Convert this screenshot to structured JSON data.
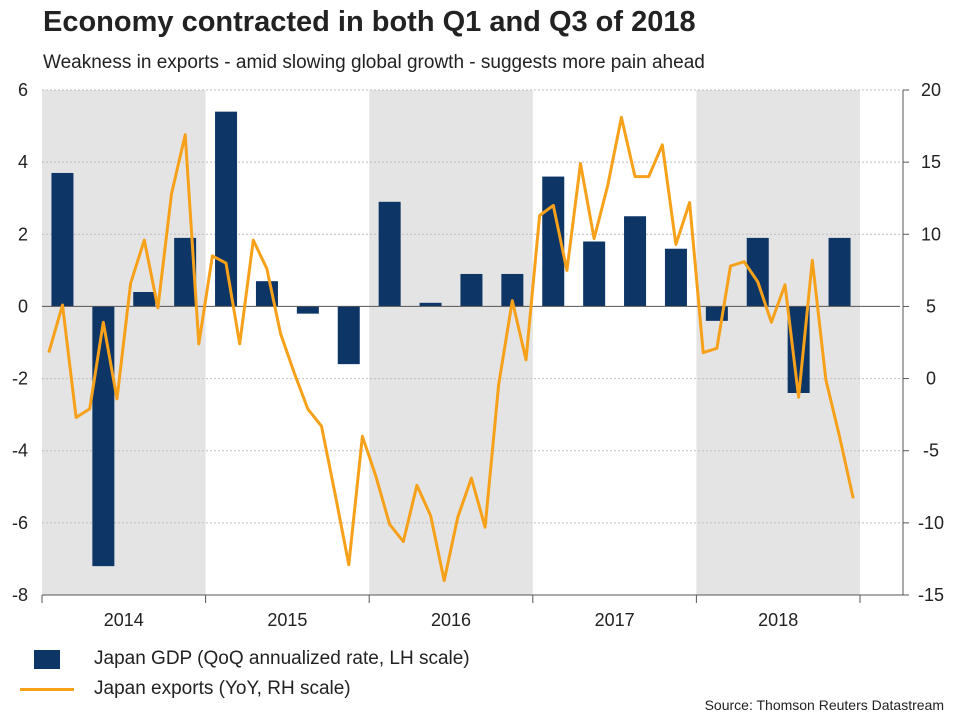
{
  "chart_data": {
    "type": "bar+line",
    "title": "Economy contracted in both Q1 and Q3 of 2018",
    "subtitle": "Weakness in exports - amid slowing global growth - suggests more pain ahead",
    "source": "Source: Thomson Reuters Datastream",
    "years": [
      "2014",
      "2015",
      "2016",
      "2017",
      "2018"
    ],
    "shaded_years": [
      "2014",
      "2016",
      "2018"
    ],
    "left_axis": {
      "ylim": [
        -8,
        6
      ],
      "ticks": [
        -8,
        -6,
        -4,
        -2,
        0,
        2,
        4,
        6
      ]
    },
    "right_axis": {
      "ylim": [
        -15,
        20
      ],
      "ticks": [
        -15,
        -10,
        -5,
        0,
        5,
        10,
        15,
        20
      ]
    },
    "bar_series": {
      "name": "Japan GDP (QoQ annualized rate, LH scale)",
      "color": "#0d3566",
      "quarters": [
        "2014 Q1",
        "2014 Q2",
        "2014 Q3",
        "2014 Q4",
        "2015 Q1",
        "2015 Q2",
        "2015 Q3",
        "2015 Q4",
        "2016 Q1",
        "2016 Q2",
        "2016 Q3",
        "2016 Q4",
        "2017 Q1",
        "2017 Q2",
        "2017 Q3",
        "2017 Q4",
        "2018 Q1",
        "2018 Q2",
        "2018 Q3",
        "2018 Q4"
      ],
      "values": [
        3.7,
        -7.2,
        0.4,
        1.9,
        5.4,
        0.7,
        -0.2,
        -1.6,
        2.9,
        0.1,
        0.9,
        0.9,
        3.6,
        1.8,
        2.5,
        1.6,
        -0.4,
        1.9,
        -2.4,
        1.9
      ]
    },
    "line_series": {
      "name": "Japan exports (YoY, RH scale)",
      "color": "#f7a11a",
      "start": "2014-01",
      "frequency": "monthly",
      "values": [
        1.8,
        5.1,
        -2.7,
        -2.1,
        3.9,
        -1.4,
        6.6,
        9.6,
        4.9,
        12.8,
        16.9,
        2.4,
        8.5,
        8.0,
        2.4,
        9.6,
        7.6,
        3.1,
        0.4,
        -2.1,
        -3.3,
        -8.0,
        -12.9,
        -4.0,
        -6.8,
        -10.1,
        -11.3,
        -7.4,
        -9.5,
        -14.0,
        -9.6,
        -6.9,
        -10.3,
        -0.4,
        5.4,
        1.3,
        11.3,
        12.0,
        7.5,
        14.9,
        9.7,
        13.4,
        18.1,
        14.0,
        14.0,
        16.2,
        9.3,
        12.2,
        1.8,
        2.1,
        7.8,
        8.1,
        6.7,
        3.9,
        6.5,
        -1.3,
        8.2,
        -0.1,
        -4.0,
        -8.3
      ]
    }
  }
}
